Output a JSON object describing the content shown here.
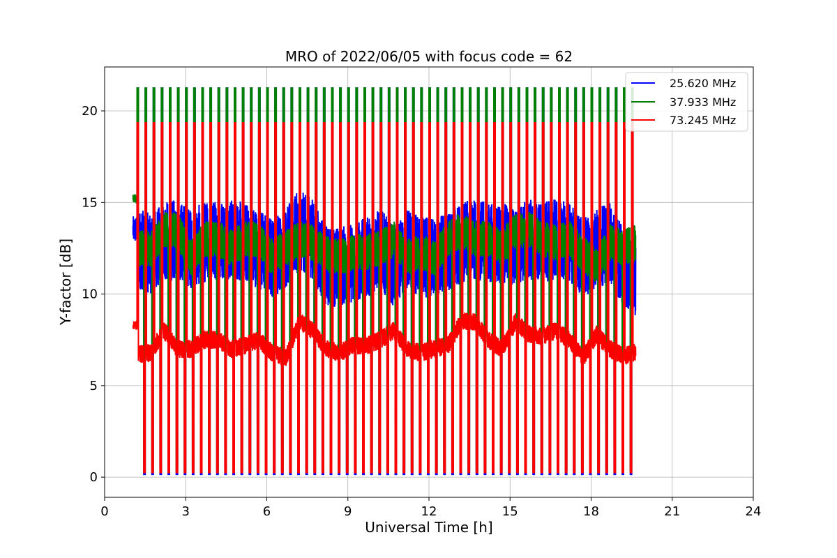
{
  "chart_data": {
    "type": "line",
    "title": "MRO of 2022/06/05 with focus code = 62",
    "xlabel": "Universal Time [h]",
    "ylabel": "Y-factor [dB]",
    "xlim": [
      0,
      24
    ],
    "ylim": [
      -1.1,
      22.4
    ],
    "xticks": [
      0,
      3,
      6,
      9,
      12,
      15,
      18,
      21,
      24
    ],
    "yticks": [
      0,
      5,
      10,
      15,
      20
    ],
    "grid": true,
    "legend_position": "top-right",
    "x_range_observed": [
      1.05,
      19.65
    ],
    "cycle_period_h": 0.3,
    "cycle_phases": [
      {
        "name": "high",
        "duration_h": 0.05
      },
      {
        "name": "baseline",
        "duration_h": 0.2
      },
      {
        "name": "low",
        "duration_h": 0.05
      }
    ],
    "series": [
      {
        "name": "25.620 MHz",
        "color": "#0000ff",
        "high_level": 21.25,
        "low_level": 0.15,
        "start_level": 13.5,
        "baseline_x": [
          1.2,
          1.7,
          2.2,
          2.7,
          3.2,
          3.7,
          4.2,
          4.7,
          5.2,
          5.7,
          6.2,
          6.7,
          7.2,
          7.7,
          8.2,
          8.7,
          9.2,
          9.7,
          10.2,
          10.7,
          11.2,
          11.7,
          12.2,
          12.7,
          13.2,
          13.7,
          14.2,
          14.7,
          15.2,
          15.7,
          16.2,
          16.7,
          17.2,
          17.7,
          18.2,
          18.7,
          19.2,
          19.6
        ],
        "baseline_y": [
          12.5,
          12.2,
          12.8,
          13.0,
          12.5,
          12.8,
          13.0,
          13.0,
          12.8,
          12.5,
          12.0,
          12.5,
          13.5,
          13.0,
          11.5,
          11.5,
          11.7,
          12.0,
          12.5,
          11.5,
          12.5,
          12.0,
          12.0,
          12.3,
          12.8,
          13.0,
          12.8,
          12.8,
          12.5,
          13.0,
          12.8,
          13.0,
          12.8,
          12.0,
          12.5,
          12.8,
          11.5,
          11.0
        ],
        "ripple_db": 2.2
      },
      {
        "name": "37.933 MHz",
        "color": "#008000",
        "high_level": 21.25,
        "low_level": 0.4,
        "start_level": 15.2,
        "baseline_x": [
          1.2,
          1.7,
          2.2,
          2.7,
          3.2,
          3.7,
          4.2,
          4.7,
          5.2,
          5.7,
          6.2,
          6.7,
          7.2,
          7.7,
          8.2,
          8.7,
          9.2,
          9.7,
          10.2,
          10.7,
          11.2,
          11.7,
          12.2,
          12.7,
          13.2,
          13.7,
          14.2,
          14.7,
          15.2,
          15.7,
          16.2,
          16.7,
          17.2,
          17.7,
          18.2,
          18.7,
          19.2,
          19.6
        ],
        "baseline_y": [
          12.5,
          12.5,
          13.5,
          13.5,
          12.0,
          13.0,
          13.0,
          12.5,
          13.0,
          13.0,
          12.0,
          12.5,
          13.0,
          12.8,
          12.2,
          12.0,
          12.3,
          12.3,
          12.5,
          13.0,
          12.0,
          12.3,
          12.0,
          13.0,
          13.5,
          13.0,
          13.0,
          12.5,
          13.5,
          13.5,
          13.0,
          12.8,
          13.0,
          12.2,
          11.5,
          12.8,
          12.5,
          12.8
        ],
        "ripple_db": 1.0
      },
      {
        "name": "73.245 MHz",
        "color": "#ff0000",
        "high_level": 19.35,
        "low_level": 0.25,
        "start_level": 8.3,
        "baseline_x": [
          1.2,
          1.7,
          2.2,
          2.7,
          3.2,
          3.7,
          4.2,
          4.7,
          5.2,
          5.7,
          6.2,
          6.7,
          7.2,
          7.7,
          8.2,
          8.7,
          9.2,
          9.7,
          10.2,
          10.7,
          11.2,
          11.7,
          12.2,
          12.7,
          13.2,
          13.7,
          14.2,
          14.7,
          15.2,
          15.7,
          16.2,
          16.7,
          17.2,
          17.7,
          18.2,
          18.7,
          19.2,
          19.6
        ],
        "baseline_y": [
          6.7,
          6.8,
          8.0,
          7.0,
          7.0,
          7.5,
          7.5,
          7.0,
          7.2,
          7.5,
          6.8,
          6.5,
          8.5,
          8.0,
          7.0,
          6.8,
          7.2,
          7.2,
          7.5,
          8.0,
          7.0,
          6.8,
          7.0,
          7.2,
          8.5,
          8.5,
          7.5,
          7.0,
          8.5,
          7.8,
          7.7,
          8.0,
          7.5,
          6.5,
          7.8,
          7.0,
          6.6,
          6.8
        ],
        "ripple_db": 0.5
      }
    ]
  }
}
